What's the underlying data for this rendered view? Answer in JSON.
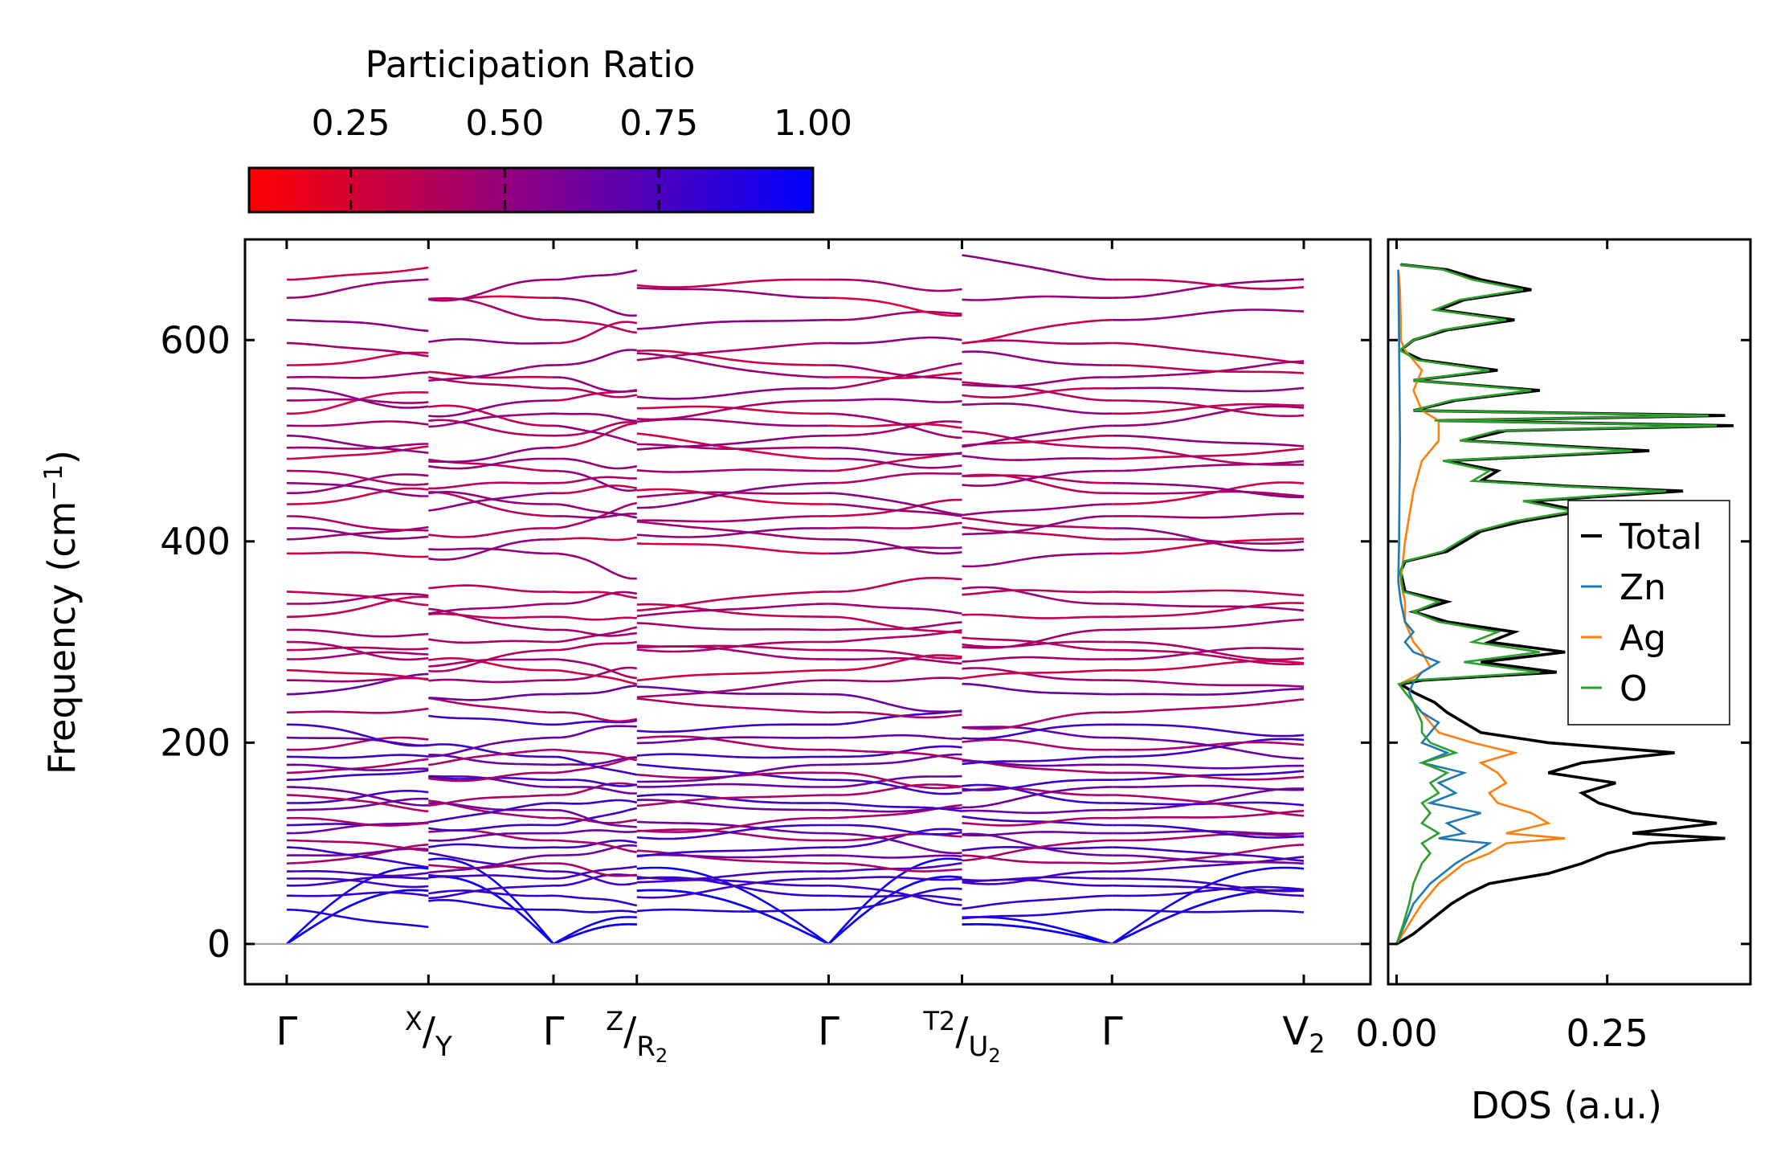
{
  "colorbar": {
    "title": "Participation Ratio",
    "ticks": [
      0.25,
      0.5,
      0.75,
      1.0
    ],
    "tick_labels": [
      "0.25",
      "0.50",
      "0.75",
      "1.00"
    ],
    "range": [
      0.085,
      1.0
    ],
    "color_low": "#ff0000",
    "color_high": "#0000ff"
  },
  "chart_data": [
    {
      "type": "line",
      "name": "phonon-band-structure",
      "ylabel": "Frequency (cm",
      "ylabel_sup": "−1",
      "ylabel_suffix": ")",
      "ylim": [
        -40,
        700
      ],
      "yticks": [
        0,
        200,
        400,
        600
      ],
      "ytick_labels": [
        "0",
        "200",
        "400",
        "600"
      ],
      "xlim": [
        -0.25,
        6.5
      ],
      "segments": [
        {
          "from": "Γ",
          "to": "X",
          "start": 0.0,
          "end": 0.85
        },
        {
          "from": "Y",
          "to": "Γ",
          "start": 0.85,
          "end": 1.6
        },
        {
          "from": "Γ",
          "to": "Z",
          "start": 1.6,
          "end": 2.1
        },
        {
          "from": "R2",
          "to": "Γ",
          "start": 2.1,
          "end": 3.25
        },
        {
          "from": "Γ",
          "to": "T2",
          "start": 3.25,
          "end": 4.05
        },
        {
          "from": "U2",
          "to": "Γ",
          "start": 4.05,
          "end": 4.95
        },
        {
          "from": "Γ",
          "to": "V2",
          "start": 4.95,
          "end": 6.1
        }
      ],
      "kpoints": [
        {
          "pos": 0.0,
          "label": "Γ"
        },
        {
          "pos": 0.85,
          "label_sup": "X",
          "label_sep": "/",
          "label_main": "Y"
        },
        {
          "pos": 1.6,
          "label": "Γ"
        },
        {
          "pos": 2.1,
          "label_sup": "Z",
          "label_sep": "/",
          "label_main": "R",
          "label_sub": "2"
        },
        {
          "pos": 3.25,
          "label": "Γ"
        },
        {
          "pos": 4.05,
          "label_sup": "T2",
          "label_sep": "/",
          "label_main": "U",
          "label_sub": "2"
        },
        {
          "pos": 4.95,
          "label": "Γ"
        },
        {
          "pos": 6.1,
          "label": "V",
          "label_sub": "2"
        }
      ],
      "bands_gamma_frequencies": [
        0,
        0,
        0,
        34,
        48,
        58,
        65,
        72,
        80,
        88,
        96,
        103,
        110,
        118,
        125,
        133,
        140,
        148,
        156,
        163,
        170,
        178,
        186,
        193,
        205,
        218,
        230,
        248,
        262,
        272,
        283,
        292,
        300,
        312,
        325,
        338,
        350,
        388,
        402,
        413,
        425,
        437,
        448,
        458,
        470,
        482,
        493,
        505,
        515,
        527,
        540,
        552,
        563,
        575,
        597,
        620,
        642,
        660
      ],
      "band_colors": "participation ratio — low-frequency acoustic bands near 1.0 (blue), high-frequency optical bands near 0.1–0.3 (red)"
    },
    {
      "type": "line",
      "name": "density-of-states",
      "xlabel": "DOS (a.u.)",
      "xlim": [
        -0.01,
        0.42
      ],
      "xticks": [
        0.0,
        0.25
      ],
      "xtick_labels": [
        "0.00",
        "0.25"
      ],
      "ylim": [
        -40,
        700
      ],
      "legend_position": "right-middle",
      "series": [
        {
          "name": "Total",
          "color": "#000000",
          "freq": [
            0,
            10,
            20,
            30,
            40,
            50,
            60,
            70,
            80,
            90,
            100,
            105,
            110,
            120,
            130,
            140,
            150,
            160,
            170,
            180,
            190,
            200,
            210,
            220,
            230,
            240,
            250,
            258,
            262,
            270,
            280,
            290,
            300,
            310,
            320,
            330,
            340,
            350,
            370,
            380,
            390,
            400,
            410,
            420,
            430,
            440,
            450,
            455,
            460,
            470,
            480,
            490,
            500,
            510,
            515,
            520,
            525,
            530,
            540,
            550,
            560,
            570,
            580,
            590,
            600,
            610,
            620,
            630,
            640,
            650,
            660,
            670,
            675
          ],
          "values": [
            0.0,
            0.02,
            0.035,
            0.05,
            0.065,
            0.085,
            0.11,
            0.18,
            0.22,
            0.25,
            0.3,
            0.39,
            0.28,
            0.38,
            0.28,
            0.24,
            0.22,
            0.26,
            0.18,
            0.22,
            0.33,
            0.18,
            0.1,
            0.08,
            0.06,
            0.045,
            0.02,
            0.005,
            0.03,
            0.19,
            0.1,
            0.2,
            0.11,
            0.14,
            0.06,
            0.02,
            0.06,
            0.01,
            0.005,
            0.01,
            0.06,
            0.08,
            0.1,
            0.15,
            0.22,
            0.16,
            0.34,
            0.2,
            0.1,
            0.12,
            0.06,
            0.3,
            0.08,
            0.13,
            0.4,
            0.05,
            0.39,
            0.02,
            0.07,
            0.17,
            0.02,
            0.12,
            0.03,
            0.005,
            0.02,
            0.06,
            0.14,
            0.05,
            0.08,
            0.16,
            0.1,
            0.06,
            0.005
          ]
        },
        {
          "name": "Zn",
          "color": "#1f77b4",
          "freq": [
            0,
            20,
            40,
            60,
            80,
            90,
            100,
            105,
            110,
            120,
            130,
            140,
            150,
            160,
            170,
            180,
            190,
            200,
            210,
            220,
            230,
            240,
            250,
            260,
            270,
            280,
            290,
            300,
            310,
            320,
            340,
            360,
            400,
            500,
            600,
            670
          ],
          "values": [
            0.0,
            0.01,
            0.02,
            0.04,
            0.07,
            0.09,
            0.11,
            0.05,
            0.08,
            0.06,
            0.1,
            0.04,
            0.07,
            0.05,
            0.08,
            0.03,
            0.06,
            0.03,
            0.04,
            0.05,
            0.03,
            0.02,
            0.015,
            0.02,
            0.03,
            0.05,
            0.02,
            0.01,
            0.02,
            0.01,
            0.005,
            0.002,
            0.003,
            0.004,
            0.003,
            0.002
          ]
        },
        {
          "name": "Ag",
          "color": "#ff7f0e",
          "freq": [
            0,
            20,
            40,
            60,
            80,
            90,
            100,
            105,
            110,
            120,
            130,
            140,
            150,
            160,
            170,
            180,
            190,
            200,
            210,
            220,
            230,
            240,
            250,
            258,
            265,
            275,
            290,
            300,
            320,
            340,
            360,
            400,
            450,
            480,
            500,
            520,
            530,
            550,
            570,
            580,
            590,
            600,
            620,
            650,
            670
          ],
          "values": [
            0.0,
            0.015,
            0.03,
            0.05,
            0.08,
            0.11,
            0.13,
            0.2,
            0.13,
            0.18,
            0.16,
            0.12,
            0.11,
            0.13,
            0.12,
            0.1,
            0.14,
            0.09,
            0.05,
            0.04,
            0.03,
            0.02,
            0.01,
            0.003,
            0.02,
            0.04,
            0.03,
            0.02,
            0.01,
            0.01,
            0.005,
            0.01,
            0.02,
            0.03,
            0.05,
            0.05,
            0.03,
            0.02,
            0.03,
            0.02,
            0.01,
            0.005,
            0.005,
            0.004,
            0.002
          ]
        },
        {
          "name": "O",
          "color": "#2ca02c",
          "freq": [
            0,
            20,
            40,
            60,
            80,
            90,
            100,
            110,
            120,
            130,
            140,
            150,
            160,
            170,
            180,
            190,
            200,
            210,
            220,
            230,
            240,
            250,
            258,
            262,
            270,
            280,
            290,
            300,
            310,
            320,
            330,
            340,
            350,
            370,
            380,
            390,
            400,
            410,
            420,
            430,
            440,
            450,
            455,
            460,
            470,
            480,
            490,
            500,
            510,
            515,
            520,
            525,
            530,
            540,
            550,
            560,
            570,
            580,
            590,
            600,
            610,
            620,
            630,
            640,
            650,
            660,
            670,
            675
          ],
          "values": [
            0.0,
            0.008,
            0.015,
            0.02,
            0.03,
            0.04,
            0.03,
            0.05,
            0.03,
            0.04,
            0.03,
            0.05,
            0.04,
            0.06,
            0.03,
            0.07,
            0.04,
            0.03,
            0.03,
            0.025,
            0.02,
            0.01,
            0.003,
            0.02,
            0.17,
            0.08,
            0.17,
            0.09,
            0.12,
            0.05,
            0.02,
            0.05,
            0.008,
            0.004,
            0.009,
            0.055,
            0.075,
            0.095,
            0.14,
            0.21,
            0.15,
            0.32,
            0.19,
            0.09,
            0.11,
            0.055,
            0.28,
            0.075,
            0.12,
            0.38,
            0.045,
            0.37,
            0.02,
            0.065,
            0.16,
            0.02,
            0.11,
            0.025,
            0.004,
            0.02,
            0.055,
            0.13,
            0.045,
            0.075,
            0.15,
            0.09,
            0.055,
            0.004
          ]
        }
      ],
      "legend": [
        "Total",
        "Zn",
        "Ag",
        "O"
      ]
    }
  ]
}
